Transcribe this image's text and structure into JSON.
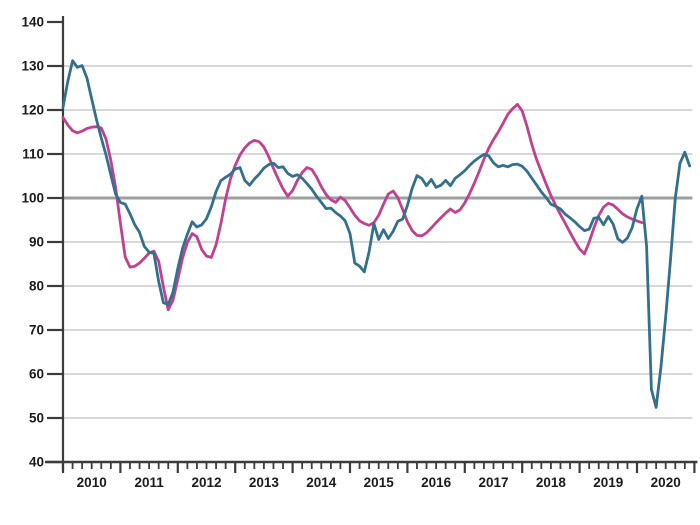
{
  "chart_data": {
    "type": "line",
    "title": "",
    "xlabel": "",
    "ylabel": "",
    "x_monthly_start": "2010-01",
    "x_tick_labels": [
      "2010",
      "2011",
      "2012",
      "2013",
      "2014",
      "2015",
      "2016",
      "2017",
      "2018",
      "2019",
      "2020"
    ],
    "ylim": [
      40,
      140
    ],
    "y_ticks": [
      40,
      50,
      60,
      70,
      80,
      90,
      100,
      110,
      120,
      130,
      140
    ],
    "baseline": 100,
    "grid": true,
    "legend_position": "none",
    "minor_x_divisions_per_year": 6,
    "colors": {
      "teal_series": "#33708c",
      "pink_series": "#bf4190",
      "gridline": "#cbcbcb",
      "baseline_line": "#9e9e9e",
      "axis": "#3c3c3c",
      "label_text": "#1b1b1b",
      "background": "#ffffff"
    },
    "series": [
      {
        "name": "pink-index-line",
        "color": "#bf4190",
        "start": "2010-01",
        "values": [
          118.3,
          116.6,
          115.3,
          114.8,
          115.2,
          115.8,
          116.1,
          116.2,
          115.9,
          113.4,
          108.6,
          102.4,
          94.3,
          86.6,
          84.3,
          84.5,
          85.2,
          86.3,
          87.5,
          87.9,
          85.6,
          79.8,
          74.6,
          76.8,
          81.5,
          86.4,
          89.9,
          91.9,
          91.2,
          88.3,
          86.8,
          86.5,
          89.4,
          94.1,
          99.8,
          104.3,
          107.4,
          109.8,
          111.4,
          112.5,
          113.1,
          112.8,
          111.6,
          109.4,
          106.7,
          104.3,
          102.1,
          100.4,
          101.7,
          104.0,
          105.8,
          106.9,
          106.5,
          104.8,
          102.6,
          100.8,
          99.6,
          99.0,
          100.2,
          99.4,
          97.8,
          96.1,
          94.8,
          94.2,
          93.8,
          94.4,
          96.1,
          98.6,
          100.9,
          101.6,
          100.1,
          97.4,
          94.6,
          92.6,
          91.5,
          91.4,
          92.1,
          93.2,
          94.4,
          95.5,
          96.6,
          97.5,
          96.7,
          97.3,
          98.9,
          101.0,
          103.4,
          106.0,
          108.8,
          111.3,
          113.3,
          115.0,
          117.0,
          119.0,
          120.3,
          121.3,
          119.8,
          116.3,
          112.2,
          108.8,
          106.0,
          103.2,
          100.6,
          98.3,
          96.2,
          94.2,
          92.2,
          90.2,
          88.4,
          87.3,
          90.0,
          93.2,
          96.0,
          97.9,
          98.8,
          98.4,
          97.4,
          96.4,
          95.7,
          95.2,
          94.8,
          94.4
        ]
      },
      {
        "name": "teal-index-line",
        "color": "#33708c",
        "start": "2010-01",
        "values": [
          120.6,
          126.5,
          131.2,
          129.7,
          130.1,
          127.3,
          122.5,
          117.8,
          113.6,
          109.8,
          105.3,
          100.9,
          99.0,
          98.6,
          96.4,
          93.9,
          92.2,
          89.0,
          87.7,
          87.4,
          81.0,
          76.2,
          75.8,
          78.6,
          84.0,
          88.6,
          91.8,
          94.6,
          93.4,
          93.9,
          95.3,
          98.0,
          101.5,
          103.9,
          104.7,
          105.4,
          106.6,
          106.9,
          104.0,
          102.9,
          104.3,
          105.4,
          106.8,
          107.6,
          107.9,
          106.9,
          107.1,
          105.6,
          104.9,
          105.3,
          104.5,
          103.3,
          102.0,
          100.4,
          99.0,
          97.6,
          97.7,
          96.7,
          95.9,
          94.8,
          91.9,
          85.2,
          84.5,
          83.2,
          87.8,
          94.2,
          90.6,
          92.8,
          90.8,
          92.4,
          94.7,
          95.2,
          98.3,
          102.2,
          105.1,
          104.4,
          102.8,
          104.2,
          102.4,
          102.9,
          104.0,
          102.8,
          104.5,
          105.3,
          106.2,
          107.4,
          108.4,
          109.2,
          109.9,
          109.6,
          108.0,
          107.1,
          107.4,
          107.1,
          107.6,
          107.7,
          107.2,
          106.1,
          104.5,
          103.0,
          101.4,
          100.1,
          98.6,
          98.1,
          97.5,
          96.3,
          95.5,
          94.6,
          93.5,
          92.6,
          92.9,
          95.4,
          95.6,
          93.9,
          95.8,
          94.1,
          90.7,
          89.9,
          90.9,
          93.3,
          97.6,
          100.4,
          89.0,
          56.5,
          52.4,
          61.5,
          73.0,
          86.0,
          100.0,
          107.9,
          110.4,
          107.3
        ]
      }
    ]
  }
}
